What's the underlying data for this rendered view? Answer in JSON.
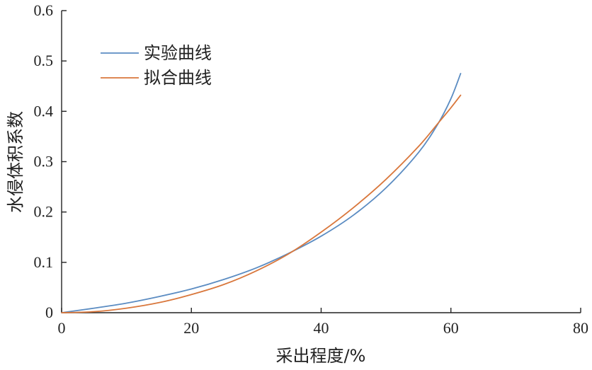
{
  "chart_data": {
    "type": "line",
    "title": "",
    "xlabel": "采出程度/%",
    "ylabel": "水侵体积系数",
    "xlim": [
      0,
      80
    ],
    "ylim": [
      0,
      0.6
    ],
    "x_ticks": [
      "0",
      "20",
      "40",
      "60",
      "80"
    ],
    "y_ticks": [
      "0",
      "0.1",
      "0.2",
      "0.3",
      "0.4",
      "0.5",
      "0.6"
    ],
    "grid": false,
    "legend_position": "top-left",
    "series": [
      {
        "name": "实验曲线",
        "color": "#5b8cc2",
        "x": [
          0,
          5,
          10,
          15,
          20,
          25,
          30,
          35,
          40,
          45,
          50,
          55,
          58,
          60,
          61.5
        ],
        "y": [
          0,
          0.009,
          0.019,
          0.032,
          0.047,
          0.066,
          0.089,
          0.118,
          0.152,
          0.194,
          0.248,
          0.318,
          0.375,
          0.425,
          0.475
        ]
      },
      {
        "name": "拟合曲线",
        "color": "#d9773c",
        "x": [
          0,
          5,
          10,
          15,
          20,
          25,
          30,
          35,
          40,
          45,
          50,
          55,
          58,
          60,
          61.5
        ],
        "y": [
          0,
          0.002,
          0.009,
          0.02,
          0.036,
          0.056,
          0.083,
          0.117,
          0.16,
          0.209,
          0.265,
          0.33,
          0.376,
          0.407,
          0.432
        ]
      }
    ]
  }
}
